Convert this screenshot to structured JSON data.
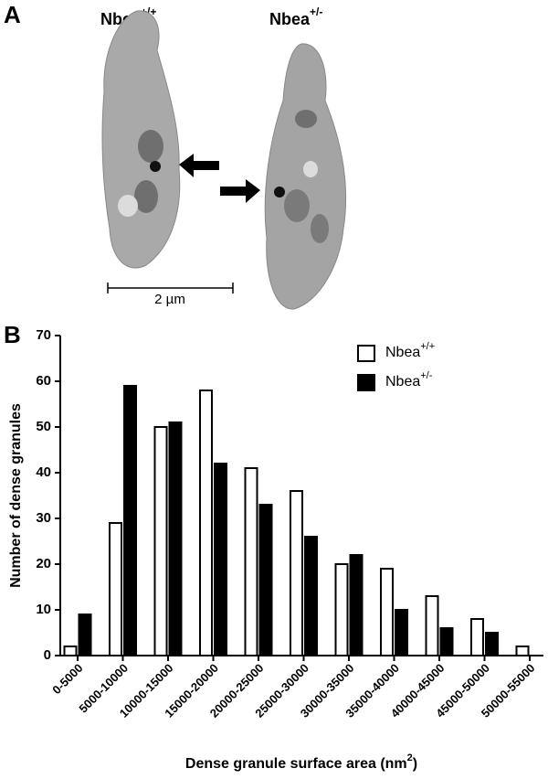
{
  "panel_a": {
    "label": "A",
    "groups": [
      {
        "name": "Nbea",
        "sup": "+/+"
      },
      {
        "name": "Nbea",
        "sup": "+/-"
      }
    ],
    "scale_bar": "2 µm"
  },
  "panel_b_label": "B",
  "chart_data": {
    "type": "bar",
    "y_label": "Number of dense granules",
    "x_label": {
      "text": "Dense granule surface area (nm",
      "sup": "2",
      "end": ")"
    },
    "categories": [
      "0-5000",
      "5000-10000",
      "10000-15000",
      "15000-20000",
      "20000-25000",
      "25000-30000",
      "30000-35000",
      "35000-40000",
      "40000-45000",
      "45000-50000",
      "50000-55000"
    ],
    "series": [
      {
        "name": "Nbea",
        "name_sup": "+/+",
        "color": "#ffffff",
        "values": [
          2,
          29,
          50,
          58,
          41,
          36,
          20,
          19,
          13,
          8,
          2
        ]
      },
      {
        "name": "Nbea",
        "name_sup": "+/-",
        "color": "#000000",
        "values": [
          9,
          59,
          51,
          42,
          33,
          26,
          22,
          10,
          6,
          5,
          0
        ]
      }
    ],
    "ylim": [
      0,
      70
    ],
    "yticks": [
      0,
      10,
      20,
      30,
      40,
      50,
      60,
      70
    ],
    "legend": "top-right"
  }
}
